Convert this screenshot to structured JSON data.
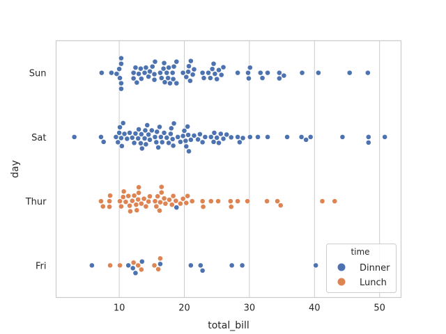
{
  "chart_data": {
    "type": "scatter",
    "subtype": "swarm",
    "title": "",
    "xlabel": "total_bill",
    "ylabel": "day",
    "xlim": [
      0.3,
      53.3
    ],
    "xticks": [
      10,
      20,
      30,
      40,
      50
    ],
    "categories": [
      "Sun",
      "Sat",
      "Thur",
      "Fri"
    ],
    "grid": "vertical",
    "legend": {
      "title": "time",
      "position": "bottom-right",
      "entries": [
        {
          "name": "Dinner",
          "color": "#4c72b0"
        },
        {
          "name": "Lunch",
          "color": "#dd8452"
        }
      ]
    },
    "series": [
      {
        "name": "Dinner",
        "color": "#4c72b0",
        "points": {
          "Sun": [
            7.3,
            8.8,
            9.6,
            10.0,
            10.1,
            10.3,
            10.3,
            10.3,
            10.3,
            12.2,
            12.2,
            12.5,
            12.7,
            13.0,
            13.3,
            13.4,
            13.9,
            14.1,
            14.5,
            14.7,
            15.1,
            15.4,
            15.4,
            15.5,
            16.3,
            16.5,
            16.8,
            16.9,
            17.0,
            17.3,
            17.5,
            17.6,
            17.8,
            18.2,
            18.3,
            18.4,
            18.8,
            18.8,
            19.8,
            20.3,
            20.6,
            20.7,
            20.9,
            21.0,
            21.3,
            21.5,
            22.8,
            23.0,
            23.7,
            24.0,
            24.3,
            24.5,
            24.7,
            25.0,
            25.3,
            25.7,
            26.0,
            28.2,
            29.8,
            29.9,
            30.1,
            31.7,
            32.0,
            32.8,
            34.6,
            34.6,
            35.3,
            38.1,
            40.6,
            45.4,
            48.2
          ],
          "Sat": [
            3.1,
            7.2,
            7.6,
            9.5,
            9.8,
            10.0,
            10.1,
            10.3,
            10.4,
            10.6,
            10.8,
            11.2,
            11.6,
            12.0,
            12.3,
            12.5,
            12.9,
            13.0,
            13.3,
            13.4,
            13.5,
            13.9,
            14.0,
            14.1,
            14.3,
            14.5,
            14.7,
            15.0,
            15.5,
            15.7,
            15.8,
            16.0,
            16.2,
            16.4,
            16.6,
            16.9,
            17.3,
            17.6,
            17.9,
            18.0,
            18.2,
            18.3,
            18.4,
            19.0,
            19.4,
            19.8,
            20.0,
            20.2,
            20.3,
            20.5,
            20.6,
            20.7,
            21.0,
            21.5,
            22.1,
            22.4,
            22.8,
            23.2,
            24.1,
            24.5,
            24.6,
            25.0,
            25.3,
            25.6,
            26.0,
            26.5,
            27.2,
            28.2,
            28.5,
            29.0,
            30.1,
            31.3,
            32.8,
            35.8,
            38.0,
            38.7,
            39.4,
            44.3,
            48.3,
            48.3,
            50.8
          ],
          "Thur": [
            18.8
          ],
          "Fri": [
            5.8,
            11.4,
            12.1,
            12.5,
            13.5,
            16.3,
            21.0,
            22.5,
            22.8,
            27.3,
            28.9,
            40.2
          ]
        }
      },
      {
        "name": "Lunch",
        "color": "#dd8452",
        "points": {
          "Sun": [],
          "Sat": [],
          "Thur": [
            7.2,
            7.5,
            8.5,
            8.5,
            8.6,
            10.1,
            10.3,
            10.6,
            10.7,
            11.0,
            11.4,
            11.6,
            11.7,
            12.0,
            12.3,
            12.6,
            12.7,
            12.9,
            13.0,
            13.0,
            13.4,
            13.8,
            14.1,
            14.5,
            14.7,
            15.5,
            15.7,
            15.9,
            16.2,
            16.3,
            16.5,
            16.5,
            16.9,
            17.1,
            17.7,
            18.1,
            18.3,
            18.7,
            19.4,
            19.8,
            20.3,
            20.5,
            21.2,
            22.8,
            22.9,
            24.1,
            25.2,
            27.2,
            27.1,
            28.2,
            29.7,
            32.7,
            34.3,
            34.8,
            41.2,
            43.1
          ],
          "Fri": [
            8.6,
            10.1,
            12.2,
            12.9,
            13.4,
            15.4,
            16.0,
            16.3
          ]
        }
      }
    ]
  }
}
